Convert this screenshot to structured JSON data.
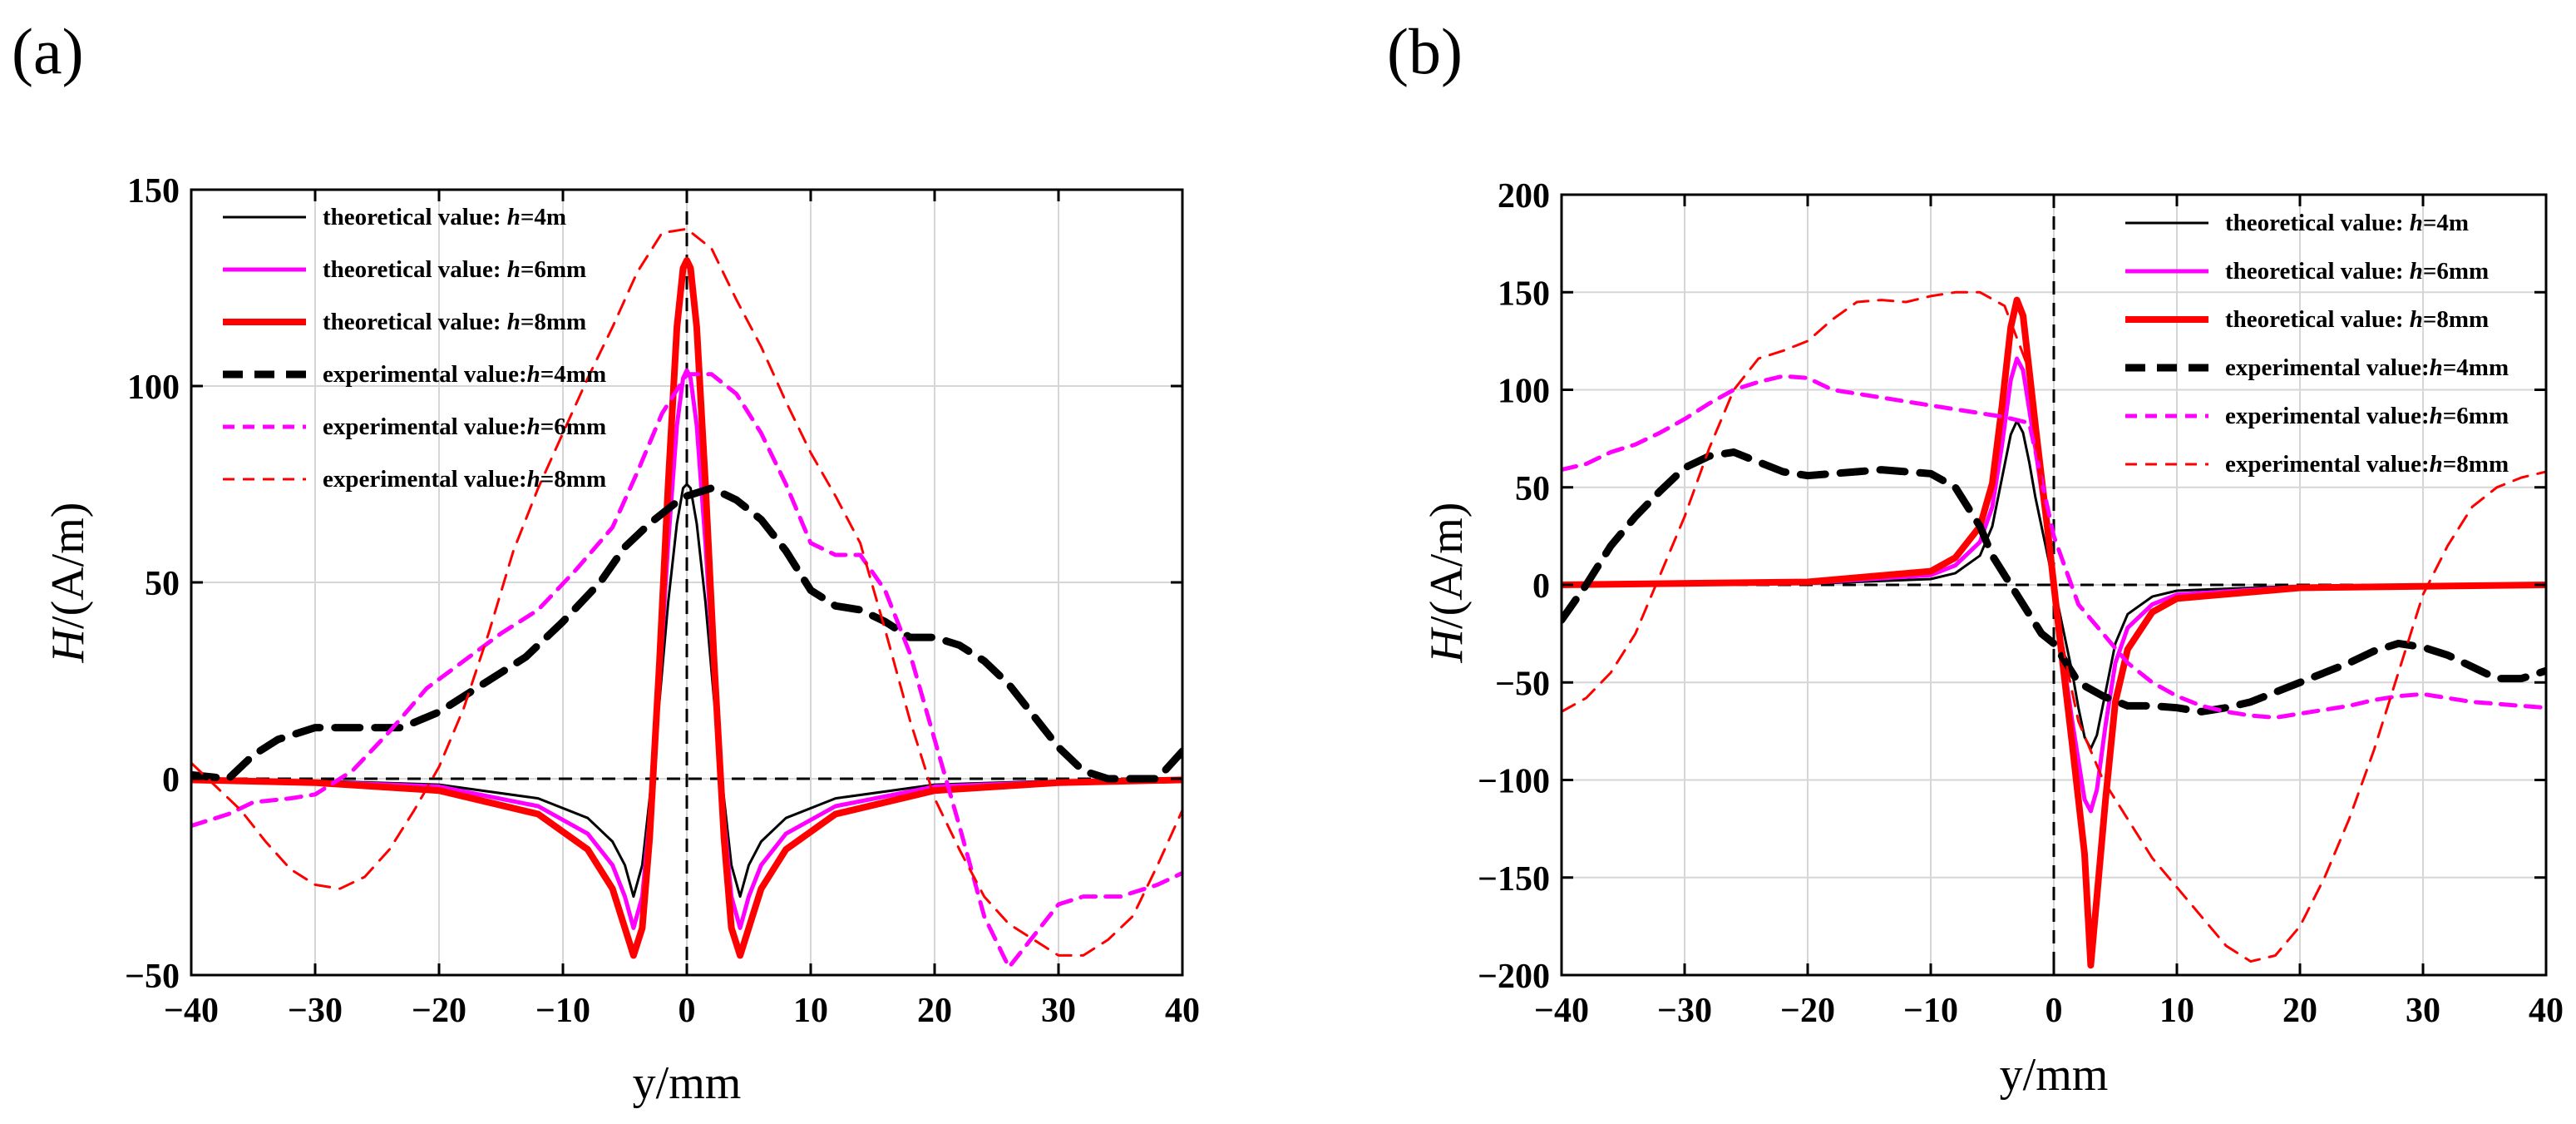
{
  "chart_data": [
    {
      "type": "line",
      "panel_label": "(a)",
      "xlabel": "y/mm",
      "ylabel_italic": "H",
      "ylabel_rest": "/(A/m)",
      "xlim": [
        -40,
        40
      ],
      "ylim": [
        -50,
        150
      ],
      "xticks": [
        -40,
        -30,
        -20,
        -10,
        0,
        10,
        20,
        30,
        40
      ],
      "yticks": [
        -50,
        0,
        50,
        100,
        150
      ],
      "grid": true,
      "legend_position": "top-left",
      "reference_lines": [
        {
          "axis": "x",
          "value": 0,
          "color": "#000000",
          "dash": "dashed"
        },
        {
          "axis": "y",
          "value": 0,
          "color": "#000000",
          "dash": "dashed"
        }
      ],
      "series": [
        {
          "prefix": "theoretical value: ",
          "var": "h",
          "suffix": "=4m",
          "color": "#000000",
          "style": "solid",
          "width": 3,
          "x": [
            -40,
            -30,
            -20,
            -12,
            -8,
            -6,
            -5,
            -4.3,
            -3.6,
            -3,
            -2.2,
            -1.5,
            -0.8,
            -0.3,
            0,
            0.3,
            0.8,
            1.5,
            2.2,
            3,
            3.6,
            4.3,
            5,
            6,
            8,
            12,
            20,
            30,
            40
          ],
          "y": [
            -0.2,
            -0.5,
            -1.5,
            -5,
            -10,
            -16,
            -22,
            -30,
            -22,
            -5,
            20,
            45,
            65,
            74,
            75,
            74,
            65,
            45,
            20,
            -5,
            -22,
            -30,
            -22,
            -16,
            -10,
            -5,
            -1.5,
            -0.5,
            -0.2
          ]
        },
        {
          "prefix": "theoretical value: ",
          "var": "h",
          "suffix": "=6mm",
          "color": "#ff00ff",
          "style": "solid",
          "width": 5,
          "x": [
            -40,
            -30,
            -20,
            -12,
            -8,
            -6,
            -5,
            -4.3,
            -3.6,
            -3,
            -2.2,
            -1.5,
            -0.8,
            -0.3,
            0,
            0.3,
            0.8,
            1.5,
            2.2,
            3,
            3.6,
            4.3,
            5,
            6,
            8,
            12,
            20,
            30,
            40
          ],
          "y": [
            -0.3,
            -0.8,
            -2,
            -7,
            -14,
            -22,
            -30,
            -38,
            -30,
            -10,
            25,
            60,
            90,
            102,
            104,
            102,
            90,
            60,
            25,
            -10,
            -30,
            -38,
            -30,
            -22,
            -14,
            -7,
            -2,
            -0.8,
            -0.3
          ]
        },
        {
          "prefix": "theoretical value: ",
          "var": "h",
          "suffix": "=8mm",
          "color": "#ff0000",
          "style": "solid",
          "width": 8,
          "x": [
            -40,
            -30,
            -20,
            -12,
            -8,
            -6,
            -5,
            -4.3,
            -3.6,
            -3,
            -2.2,
            -1.5,
            -0.8,
            -0.3,
            0,
            0.3,
            0.8,
            1.5,
            2.2,
            3,
            3.6,
            4.3,
            5,
            6,
            8,
            12,
            20,
            30,
            40
          ],
          "y": [
            -0.3,
            -1,
            -3,
            -9,
            -18,
            -28,
            -38,
            -45,
            -38,
            -15,
            30,
            75,
            115,
            130,
            132,
            130,
            115,
            75,
            30,
            -15,
            -38,
            -45,
            -38,
            -28,
            -18,
            -9,
            -3,
            -1,
            -0.3
          ]
        },
        {
          "prefix": "experimental value:",
          "var": "h",
          "suffix": "=4mm",
          "color": "#000000",
          "style": "dashed",
          "width": 9,
          "x": [
            -40,
            -37,
            -35,
            -33,
            -30,
            -27,
            -23,
            -20,
            -17,
            -13,
            -10,
            -7,
            -5,
            -3,
            -1,
            0,
            2,
            4,
            6,
            8,
            10,
            12,
            14,
            16,
            18,
            20,
            22,
            24,
            26,
            28,
            30,
            32,
            34,
            36,
            38,
            40
          ],
          "y": [
            1,
            0,
            6,
            10,
            13,
            13,
            13,
            17,
            23,
            31,
            40,
            50,
            59,
            65,
            70,
            72,
            74,
            71,
            66,
            58,
            48,
            44,
            43,
            40,
            36,
            36,
            34,
            30,
            24,
            16,
            8,
            2,
            0,
            0,
            0,
            7
          ]
        },
        {
          "prefix": "experimental value:",
          "var": "h",
          "suffix": "=6mm",
          "color": "#ff00ff",
          "style": "dashed",
          "width": 5,
          "x": [
            -40,
            -37,
            -35,
            -32,
            -30,
            -27,
            -24,
            -21,
            -18,
            -15,
            -12,
            -9,
            -6,
            -4,
            -2,
            0,
            2,
            4,
            6,
            8,
            10,
            12,
            14,
            16,
            18,
            20,
            22,
            24,
            26,
            28,
            30,
            32,
            35,
            38,
            40
          ],
          "y": [
            -12,
            -9,
            -6,
            -5,
            -4,
            2,
            12,
            23,
            30,
            37,
            43,
            53,
            64,
            78,
            93,
            103,
            103,
            98,
            88,
            75,
            60,
            57,
            57,
            48,
            32,
            10,
            -12,
            -35,
            -48,
            -40,
            -32,
            -30,
            -30,
            -27,
            -24
          ]
        },
        {
          "prefix": "experimental value:",
          "var": "h",
          "suffix": "=8mm",
          "color": "#ff0000",
          "style": "dashed",
          "width": 3,
          "x": [
            -40,
            -38,
            -36,
            -34,
            -32,
            -30,
            -28,
            -26,
            -24,
            -22,
            -20,
            -18,
            -16,
            -14,
            -12,
            -10,
            -8,
            -6,
            -4,
            -2,
            0,
            2,
            4,
            6,
            8,
            10,
            12,
            14,
            16,
            18,
            20,
            22,
            24,
            26,
            28,
            30,
            32,
            34,
            36,
            38,
            40
          ],
          "y": [
            4,
            -2,
            -8,
            -16,
            -23,
            -27,
            -28,
            -25,
            -18,
            -8,
            3,
            18,
            37,
            58,
            74,
            88,
            102,
            115,
            129,
            139,
            140,
            135,
            122,
            110,
            96,
            83,
            72,
            60,
            38,
            15,
            -5,
            -18,
            -30,
            -37,
            -41,
            -45,
            -45,
            -41,
            -35,
            -22,
            -8
          ]
        }
      ]
    },
    {
      "type": "line",
      "panel_label": "(b)",
      "xlabel": "y/mm",
      "ylabel_italic": "H",
      "ylabel_rest": "/(A/m)",
      "xlim": [
        -40,
        40
      ],
      "ylim": [
        -200,
        200
      ],
      "xticks": [
        -40,
        -30,
        -20,
        -10,
        0,
        10,
        20,
        30,
        40
      ],
      "yticks": [
        -200,
        -150,
        -100,
        -50,
        0,
        50,
        100,
        150,
        200
      ],
      "grid": true,
      "legend_position": "top-right",
      "reference_lines": [
        {
          "axis": "x",
          "value": 0,
          "color": "#000000",
          "dash": "dashed"
        },
        {
          "axis": "y",
          "value": 0,
          "color": "#000000",
          "dash": "dashed"
        }
      ],
      "series": [
        {
          "prefix": "theoretical value: ",
          "var": "h",
          "suffix": "=4m",
          "color": "#000000",
          "style": "solid",
          "width": 3,
          "x": [
            -40,
            -20,
            -10,
            -8,
            -6,
            -5,
            -4.2,
            -3.5,
            -3,
            -2.5,
            -2,
            -1.5,
            -1,
            -0.5,
            0,
            0.5,
            1,
            1.5,
            2,
            2.5,
            3,
            3.5,
            4.2,
            5,
            6,
            8,
            10,
            20,
            40
          ],
          "y": [
            0,
            0.5,
            3,
            6,
            15,
            30,
            55,
            77,
            84,
            78,
            63,
            45,
            30,
            15,
            0,
            -15,
            -30,
            -45,
            -63,
            -78,
            -84,
            -77,
            -55,
            -30,
            -15,
            -6,
            -3,
            -0.5,
            0
          ]
        },
        {
          "prefix": "theoretical value: ",
          "var": "h",
          "suffix": "=6mm",
          "color": "#ff00ff",
          "style": "solid",
          "width": 5,
          "x": [
            -40,
            -20,
            -10,
            -8,
            -6,
            -5,
            -4.2,
            -3.5,
            -3,
            -2.5,
            -2,
            -1.5,
            -1,
            -0.5,
            0,
            0.5,
            1,
            1.5,
            2,
            2.5,
            3,
            3.5,
            4.2,
            5,
            6,
            8,
            10,
            20,
            40
          ],
          "y": [
            0,
            1,
            5,
            10,
            22,
            40,
            72,
            105,
            116,
            110,
            90,
            70,
            48,
            25,
            0,
            -25,
            -48,
            -70,
            -90,
            -110,
            -116,
            -105,
            -72,
            -40,
            -22,
            -10,
            -5,
            -1,
            0
          ]
        },
        {
          "prefix": "theoretical value: ",
          "var": "h",
          "suffix": "=8mm",
          "color": "#ff0000",
          "style": "solid",
          "width": 8,
          "x": [
            -40,
            -20,
            -10,
            -8,
            -6,
            -5,
            -4.2,
            -3.5,
            -3,
            -2.5,
            -2,
            -1.5,
            -1,
            -0.5,
            0,
            0.5,
            1,
            1.5,
            2,
            2.5,
            3,
            3.5,
            4.2,
            5,
            6,
            8,
            10,
            20,
            40
          ],
          "y": [
            0,
            1.5,
            7,
            14,
            30,
            52,
            92,
            132,
            146,
            138,
            110,
            82,
            55,
            28,
            0,
            -28,
            -55,
            -82,
            -110,
            -138,
            -195,
            -160,
            -110,
            -60,
            -33,
            -14,
            -7,
            -1.5,
            0
          ]
        },
        {
          "prefix": "experimental value:",
          "var": "h",
          "suffix": "=4mm",
          "color": "#000000",
          "style": "dashed",
          "width": 9,
          "x": [
            -40,
            -38,
            -36,
            -34,
            -32,
            -30,
            -28,
            -26,
            -24,
            -22,
            -20,
            -18,
            -16,
            -14,
            -12,
            -10,
            -8,
            -6,
            -5,
            -4,
            -3,
            -2,
            -1,
            0,
            1,
            2,
            4,
            6,
            8,
            10,
            12,
            14,
            16,
            18,
            20,
            22,
            24,
            26,
            28,
            30,
            32,
            34,
            36,
            38,
            40
          ],
          "y": [
            -18,
            0,
            20,
            35,
            48,
            60,
            66,
            68,
            63,
            58,
            56,
            57,
            58,
            59,
            58,
            57,
            50,
            30,
            15,
            5,
            -5,
            -15,
            -25,
            -30,
            -40,
            -50,
            -57,
            -62,
            -62,
            -63,
            -65,
            -63,
            -60,
            -55,
            -50,
            -45,
            -40,
            -34,
            -30,
            -32,
            -36,
            -42,
            -48,
            -48,
            -44
          ]
        },
        {
          "prefix": "experimental value:",
          "var": "h",
          "suffix": "=6mm",
          "color": "#ff00ff",
          "style": "dashed",
          "width": 5,
          "x": [
            -40,
            -38,
            -36,
            -34,
            -32,
            -30,
            -28,
            -26,
            -24,
            -22,
            -20,
            -18,
            -16,
            -14,
            -12,
            -10,
            -8,
            -6,
            -4,
            -2,
            0,
            2,
            4,
            6,
            8,
            10,
            12,
            14,
            16,
            18,
            20,
            22,
            24,
            26,
            28,
            30,
            32,
            34,
            36,
            38,
            40
          ],
          "y": [
            59,
            62,
            68,
            72,
            78,
            85,
            93,
            100,
            104,
            107,
            106,
            100,
            98,
            96,
            94,
            92,
            90,
            88,
            86,
            83,
            25,
            -10,
            -25,
            -40,
            -50,
            -57,
            -62,
            -65,
            -67,
            -68,
            -66,
            -64,
            -62,
            -59,
            -57,
            -56,
            -58,
            -60,
            -61,
            -62,
            -63
          ]
        },
        {
          "prefix": "experimental value:",
          "var": "h",
          "suffix": "=8mm",
          "color": "#ff0000",
          "style": "dashed",
          "width": 3,
          "x": [
            -40,
            -38,
            -36,
            -34,
            -32,
            -30,
            -28,
            -26,
            -24,
            -22,
            -20,
            -18,
            -16,
            -14,
            -12,
            -10,
            -8,
            -6,
            -4,
            -2,
            -1,
            0,
            1,
            2,
            4,
            6,
            8,
            10,
            12,
            14,
            16,
            18,
            20,
            22,
            24,
            26,
            28,
            30,
            32,
            34,
            36,
            38,
            40
          ],
          "y": [
            -65,
            -58,
            -45,
            -25,
            5,
            35,
            70,
            100,
            116,
            120,
            125,
            136,
            145,
            146,
            145,
            148,
            150,
            150,
            143,
            110,
            50,
            -5,
            -40,
            -70,
            -100,
            -120,
            -140,
            -155,
            -170,
            -185,
            -193,
            -190,
            -175,
            -150,
            -120,
            -85,
            -45,
            -5,
            20,
            40,
            50,
            55,
            58
          ]
        }
      ]
    }
  ]
}
